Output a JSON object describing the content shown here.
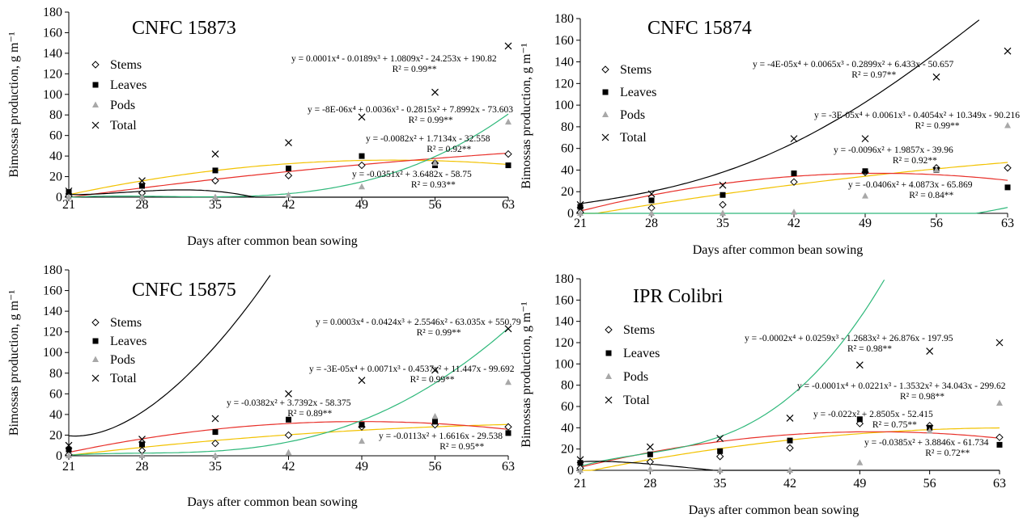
{
  "chart_data": [
    {
      "type": "scatter",
      "title": "CNFC 15873",
      "xlabel": "Days after common bean sowing",
      "ylabel": "Bimossas production, g m⁻¹",
      "xlim": [
        21,
        63
      ],
      "ylim": [
        0,
        180
      ],
      "x_ticks": [
        "21",
        "28",
        "35",
        "42",
        "49",
        "56",
        "63"
      ],
      "y_ticks": [
        "0",
        "20",
        "40",
        "60",
        "80",
        "100",
        "120",
        "140",
        "160",
        "180"
      ],
      "legend": [
        "Stems",
        "Leaves",
        "Pods",
        "Total"
      ],
      "legend_position": "left",
      "series": [
        {
          "name": "Stems",
          "marker": "diamond",
          "color": "#000000",
          "line_color": "#f2c200",
          "x": [
            21,
            28,
            35,
            42,
            49,
            56,
            63
          ],
          "y": [
            1,
            4,
            16,
            21,
            31,
            33,
            42
          ],
          "fit": {
            "kind": "poly",
            "c": [
              -58.75,
              3.6482,
              -0.0351
            ],
            "from": 21,
            "to": 63
          }
        },
        {
          "name": "Leaves",
          "marker": "square",
          "color": "#000000",
          "line_color": "#e8302a",
          "x": [
            21,
            28,
            35,
            42,
            49,
            56,
            63
          ],
          "y": [
            5,
            11,
            26,
            28,
            40,
            31,
            31
          ],
          "fit": {
            "kind": "poly",
            "c": [
              -32.558,
              1.7134,
              -0.0082
            ],
            "from": 21,
            "to": 63
          }
        },
        {
          "name": "Pods",
          "marker": "triangle",
          "color": "#a8a8a8",
          "line_color": "#2eb87a",
          "x": [
            21,
            28,
            35,
            42,
            49,
            56,
            63
          ],
          "y": [
            0,
            0,
            0,
            2,
            10,
            33,
            73
          ],
          "fit": {
            "kind": "poly",
            "c": [
              -73.603,
              7.8992,
              -0.2815,
              0.0036,
              -8e-06
            ],
            "from": 21,
            "to": 63
          }
        },
        {
          "name": "Total",
          "marker": "x",
          "color": "#000000",
          "line_color": "#000000",
          "x": [
            21,
            28,
            35,
            42,
            49,
            56,
            63
          ],
          "y": [
            6,
            16,
            42,
            53,
            78,
            102,
            147
          ],
          "fit": {
            "kind": "poly",
            "c": [
              190.82,
              -24.253,
              1.0809,
              -0.0189,
              0.0001
            ],
            "from": 21,
            "to": 63
          }
        }
      ],
      "equations": [
        {
          "line1": "y = 0.0001x⁴ - 0.0189x³ + 1.0809x² - 24.253x + 190.82",
          "line2": "R² = 0.99**"
        },
        {
          "line1": "y = -8E-06x⁴ + 0.0036x³ - 0.2815x² + 7.8992x - 73.603",
          "line2": "R² = 0.99**"
        },
        {
          "line1": "y = -0.0082x² + 1.7134x - 32.558",
          "line2": "R² = 0.92**"
        },
        {
          "line1": "y = -0.0351x² + 3.6482x - 58.75",
          "line2": "R² = 0.93**"
        }
      ]
    },
    {
      "type": "scatter",
      "title": "CNFC 15874",
      "xlabel": "Days after common bean sowing",
      "ylabel": "Bimossas production, g m⁻¹",
      "xlim": [
        21,
        63
      ],
      "ylim": [
        0,
        180
      ],
      "x_ticks": [
        "21",
        "28",
        "35",
        "42",
        "49",
        "56",
        "63"
      ],
      "y_ticks": [
        "0",
        "20",
        "40",
        "60",
        "80",
        "100",
        "120",
        "140",
        "160",
        "180"
      ],
      "legend": [
        "Stems",
        "Leaves",
        "Pods",
        "Total"
      ],
      "legend_position": "left",
      "series": [
        {
          "name": "Stems",
          "marker": "diamond",
          "color": "#000000",
          "line_color": "#f2c200",
          "x": [
            21,
            28,
            35,
            42,
            49,
            56,
            63
          ],
          "y": [
            1,
            5,
            8,
            29,
            38,
            42,
            42
          ],
          "fit": {
            "kind": "poly",
            "c": [
              -39.96,
              1.9857,
              -0.0096
            ],
            "from": 21,
            "to": 63
          }
        },
        {
          "name": "Leaves",
          "marker": "square",
          "color": "#000000",
          "line_color": "#e8302a",
          "x": [
            21,
            28,
            35,
            42,
            49,
            56,
            63
          ],
          "y": [
            6,
            12,
            17,
            37,
            39,
            40,
            24
          ],
          "fit": {
            "kind": "poly",
            "c": [
              -65.869,
              4.0873,
              -0.0406
            ],
            "from": 21,
            "to": 63
          }
        },
        {
          "name": "Pods",
          "marker": "triangle",
          "color": "#a8a8a8",
          "line_color": "#2eb87a",
          "x": [
            21,
            28,
            35,
            42,
            49,
            56,
            63
          ],
          "y": [
            0,
            0,
            0,
            1,
            16,
            40,
            81
          ],
          "fit": {
            "kind": "poly",
            "c": [
              -90.216,
              10.349,
              -0.4054,
              0.0061,
              -3e-05
            ],
            "from": 21,
            "to": 63
          }
        },
        {
          "name": "Total",
          "marker": "x",
          "color": "#000000",
          "line_color": "#000000",
          "x": [
            21,
            28,
            35,
            42,
            49,
            56,
            63
          ],
          "y": [
            8,
            18,
            26,
            69,
            69,
            126,
            150
          ],
          "fit": {
            "kind": "poly",
            "c": [
              -50.657,
              6.433,
              -0.2899,
              0.0065,
              -4e-05
            ],
            "from": 21,
            "to": 63
          }
        }
      ],
      "equations": [
        {
          "line1": "y = -4E-05x⁴ + 0.0065x³ - 0.2899x² + 6.433x - 50.657",
          "line2": "R² = 0.97**"
        },
        {
          "line1": "y = -3E-05x⁴ + 0.0061x³ - 0.4054x² + 10.349x - 90.216",
          "line2": "R² = 0.99**"
        },
        {
          "line1": "y = -0.0096x² + 1.9857x - 39.96",
          "line2": "R² = 0.92**"
        },
        {
          "line1": "y = -0.0406x² + 4.0873x - 65.869",
          "line2": "R² = 0.84**"
        }
      ]
    },
    {
      "type": "scatter",
      "title": "CNFC 15875",
      "xlabel": "Days after common bean sowing",
      "ylabel": "Bimossas production, g m⁻¹",
      "xlim": [
        21,
        63
      ],
      "ylim": [
        0,
        180
      ],
      "x_ticks": [
        "21",
        "28",
        "35",
        "42",
        "49",
        "56",
        "63"
      ],
      "y_ticks": [
        "0",
        "20",
        "40",
        "60",
        "80",
        "100",
        "120",
        "140",
        "160",
        "180"
      ],
      "legend": [
        "Stems",
        "Leaves",
        "Pods",
        "Total"
      ],
      "legend_position": "left",
      "series": [
        {
          "name": "Stems",
          "marker": "diamond",
          "color": "#000000",
          "line_color": "#f2c200",
          "x": [
            21,
            28,
            35,
            42,
            49,
            56,
            63
          ],
          "y": [
            1,
            5,
            12,
            20,
            28,
            30,
            28
          ],
          "fit": {
            "kind": "poly",
            "c": [
              -29.538,
              1.6616,
              -0.0113
            ],
            "from": 21,
            "to": 63
          }
        },
        {
          "name": "Leaves",
          "marker": "square",
          "color": "#000000",
          "line_color": "#e8302a",
          "x": [
            21,
            28,
            35,
            42,
            49,
            56,
            63
          ],
          "y": [
            6,
            11,
            23,
            35,
            30,
            33,
            22
          ],
          "fit": {
            "kind": "poly",
            "c": [
              -58.375,
              3.7392,
              -0.0382
            ],
            "from": 21,
            "to": 63
          }
        },
        {
          "name": "Pods",
          "marker": "triangle",
          "color": "#a8a8a8",
          "line_color": "#2eb87a",
          "x": [
            21,
            28,
            35,
            42,
            49,
            56,
            63
          ],
          "y": [
            0,
            0,
            0,
            3,
            14,
            38,
            71
          ],
          "fit": {
            "kind": "poly",
            "c": [
              -99.692,
              11.447,
              -0.4537,
              0.0071,
              -3e-05
            ],
            "from": 21,
            "to": 63
          }
        },
        {
          "name": "Total",
          "marker": "x",
          "color": "#000000",
          "line_color": "#000000",
          "x": [
            21,
            28,
            35,
            42,
            49,
            56,
            63
          ],
          "y": [
            10,
            16,
            36,
            60,
            73,
            83,
            123
          ],
          "fit": {
            "kind": "poly",
            "c": [
              550.79,
              -63.035,
              2.5546,
              -0.0424,
              0.0003
            ],
            "from": 21,
            "to": 63
          }
        }
      ],
      "equations": [
        {
          "line1": "y = 0.0003x⁴ - 0.0424x³ + 2.5546x² - 63.035x + 550.79",
          "line2": "R² = 0.99**"
        },
        {
          "line1": "y = -3E-05x⁴ + 0.0071x³ - 0.4537x² + 11.447x - 99.692",
          "line2": "R² = 0.99**"
        },
        {
          "line1": "y = -0.0382x² + 3.7392x - 58.375",
          "line2": "R² = 0.89**"
        },
        {
          "line1": "y = -0.0113x² + 1.6616x - 29.538",
          "line2": "R² = 0.95**"
        }
      ]
    },
    {
      "type": "scatter",
      "title": "IPR Colibri",
      "xlabel": "Days after common bean sowing",
      "ylabel": "Bimossas production, g m⁻¹",
      "xlim": [
        21,
        63
      ],
      "ylim": [
        0,
        180
      ],
      "x_ticks": [
        "21",
        "28",
        "35",
        "42",
        "49",
        "56",
        "63"
      ],
      "y_ticks": [
        "0",
        "20",
        "40",
        "60",
        "80",
        "100",
        "120",
        "140",
        "160",
        "180"
      ],
      "legend": [
        "Stems",
        "Leaves",
        "Pods",
        "Total"
      ],
      "legend_position": "left",
      "series": [
        {
          "name": "Stems",
          "marker": "diamond",
          "color": "#000000",
          "line_color": "#f2c200",
          "x": [
            21,
            28,
            35,
            42,
            49,
            56,
            63
          ],
          "y": [
            2,
            8,
            13,
            21,
            44,
            42,
            31
          ],
          "fit": {
            "kind": "poly",
            "c": [
              -52.415,
              2.8505,
              -0.022
            ],
            "from": 21,
            "to": 63
          }
        },
        {
          "name": "Leaves",
          "marker": "square",
          "color": "#000000",
          "line_color": "#e8302a",
          "x": [
            21,
            28,
            35,
            42,
            49,
            56,
            63
          ],
          "y": [
            7,
            15,
            18,
            28,
            48,
            40,
            24
          ],
          "fit": {
            "kind": "poly",
            "c": [
              -61.734,
              3.8846,
              -0.0385
            ],
            "from": 21,
            "to": 63
          }
        },
        {
          "name": "Pods",
          "marker": "triangle",
          "color": "#a8a8a8",
          "line_color": "#2eb87a",
          "x": [
            21,
            28,
            35,
            42,
            49,
            56,
            63
          ],
          "y": [
            0,
            1,
            0,
            0,
            7,
            37,
            63
          ],
          "fit": {
            "kind": "poly",
            "c": [
              -299.62,
              34.043,
              -1.3532,
              0.0221,
              -0.0001
            ],
            "from": 21,
            "to": 63
          }
        },
        {
          "name": "Total",
          "marker": "x",
          "color": "#000000",
          "line_color": "#000000",
          "x": [
            21,
            28,
            35,
            42,
            49,
            56,
            63
          ],
          "y": [
            10,
            22,
            30,
            49,
            99,
            112,
            120
          ],
          "fit": {
            "kind": "poly",
            "c": [
              -197.95,
              26.876,
              -1.2683,
              0.0259,
              -0.0002
            ],
            "from": 21,
            "to": 63
          }
        }
      ],
      "equations": [
        {
          "line1": "y = -0.0002x⁴ + 0.0259x³ - 1.2683x² + 26.876x - 197.95",
          "line2": "R² = 0.98**"
        },
        {
          "line1": "y = -0.0001x⁴ + 0.0221x³ - 1.3532x² + 34.043x - 299.62",
          "line2": "R² = 0.98**"
        },
        {
          "line1": "y = -0.022x² + 2.8505x - 52.415",
          "line2": "R² = 0.75**"
        },
        {
          "line1": "y = -0.0385x² + 3.8846x - 61.734",
          "line2": "R² = 0.72**"
        }
      ]
    }
  ]
}
